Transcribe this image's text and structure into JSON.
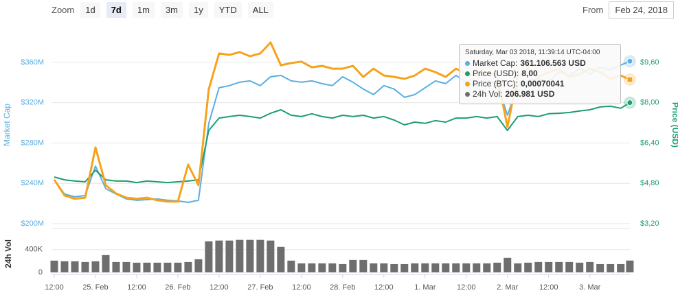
{
  "toolbar": {
    "zoom_label": "Zoom",
    "buttons": [
      "1d",
      "7d",
      "1m",
      "3m",
      "1y",
      "YTD",
      "ALL"
    ],
    "selected": "7d",
    "from_label": "From",
    "from_date": "Feb 24, 2018"
  },
  "tooltip": {
    "title": "Saturday, Mar 03 2018, 11:39:14 UTC-04:00",
    "rows": [
      {
        "label": "Market Cap:",
        "value": "361.106.563 USD"
      },
      {
        "label": "Price (USD):",
        "value": "8,00"
      },
      {
        "label": "Price (BTC):",
        "value": "0,00070041"
      },
      {
        "label": "24h Vol:",
        "value": "206.981 USD"
      }
    ]
  },
  "chart_data": [
    {
      "type": "line",
      "ylabel": "Market Cap",
      "y2label": "Price (USD)",
      "x": [
        "2018-02-24T12:00",
        "2018-02-24T15:00",
        "2018-02-24T18:00",
        "2018-02-24T21:00",
        "2018-02-25T00:00",
        "2018-02-25T03:00",
        "2018-02-25T06:00",
        "2018-02-25T09:00",
        "2018-02-25T12:00",
        "2018-02-25T15:00",
        "2018-02-25T18:00",
        "2018-02-25T21:00",
        "2018-02-26T00:00",
        "2018-02-26T03:00",
        "2018-02-26T06:00",
        "2018-02-26T09:00",
        "2018-02-26T12:00",
        "2018-02-26T15:00",
        "2018-02-26T18:00",
        "2018-02-26T21:00",
        "2018-02-27T00:00",
        "2018-02-27T03:00",
        "2018-02-27T06:00",
        "2018-02-27T09:00",
        "2018-02-27T12:00",
        "2018-02-27T15:00",
        "2018-02-27T18:00",
        "2018-02-27T21:00",
        "2018-02-28T00:00",
        "2018-02-28T03:00",
        "2018-02-28T06:00",
        "2018-02-28T09:00",
        "2018-02-28T12:00",
        "2018-02-28T15:00",
        "2018-02-28T18:00",
        "2018-02-28T21:00",
        "2018-03-01T00:00",
        "2018-03-01T03:00",
        "2018-03-01T06:00",
        "2018-03-01T09:00",
        "2018-03-01T12:00",
        "2018-03-01T15:00",
        "2018-03-01T18:00",
        "2018-03-01T21:00",
        "2018-03-02T00:00",
        "2018-03-02T03:00",
        "2018-03-02T06:00",
        "2018-03-02T09:00",
        "2018-03-02T12:00",
        "2018-03-02T15:00",
        "2018-03-02T18:00",
        "2018-03-02T21:00",
        "2018-03-03T00:00",
        "2018-03-03T03:00",
        "2018-03-03T06:00",
        "2018-03-03T09:00",
        "2018-03-03T11:39"
      ],
      "xlim": [
        "2018-02-24T11:12",
        "2018-03-03T11:40"
      ],
      "ylim": [
        200000000,
        396000000
      ],
      "yticks": [
        {
          "value": 200000000,
          "label": "$200M"
        },
        {
          "value": 240000000,
          "label": "$240M"
        },
        {
          "value": 280000000,
          "label": "$280M"
        },
        {
          "value": 320000000,
          "label": "$320M"
        },
        {
          "value": 360000000,
          "label": "$360M"
        }
      ],
      "y2lim": [
        3.2,
        11.04
      ],
      "y2ticks": [
        {
          "value": 3.2,
          "label": "$3,20"
        },
        {
          "value": 4.8,
          "label": "$4,80"
        },
        {
          "value": 6.4,
          "label": "$6,40"
        },
        {
          "value": 8,
          "label": "$8,00"
        },
        {
          "value": 9.6,
          "label": "$9,60"
        }
      ],
      "y3lim": [
        0.00019,
        0.00089
      ],
      "grid": true,
      "ylabel_color": "#5aaee0",
      "y2label_color": "#1b9e6f",
      "series": [
        {
          "name": "Market Cap",
          "color": "#5aaee0",
          "axis": "y",
          "marker": "circle",
          "values": [
            243600000,
            229300000,
            226600000,
            227900000,
            257200000,
            234700000,
            229300000,
            224500000,
            223200000,
            223800000,
            224500000,
            223200000,
            222500000,
            221100000,
            223200000,
            299400000,
            334800000,
            336900000,
            340300000,
            341600000,
            336900000,
            345700000,
            347100000,
            341600000,
            340300000,
            341600000,
            338900000,
            336900000,
            345700000,
            340300000,
            333500000,
            328000000,
            336900000,
            333500000,
            325300000,
            328000000,
            334800000,
            341600000,
            338900000,
            347100000,
            340300000,
            336900000,
            341600000,
            338900000,
            307600000,
            336900000,
            341600000,
            343700000,
            340300000,
            350500000,
            347100000,
            353900000,
            348400000,
            355200000,
            352500000,
            357300000,
            361106563
          ]
        },
        {
          "name": "Price (USD)",
          "color": "#1b9e6f",
          "axis": "y2",
          "marker": "circle",
          "values": [
            5.05,
            4.94,
            4.89,
            4.86,
            5.32,
            4.94,
            4.89,
            4.89,
            4.83,
            4.89,
            4.86,
            4.83,
            4.86,
            4.89,
            4.94,
            6.9,
            7.39,
            7.45,
            7.5,
            7.45,
            7.39,
            7.58,
            7.72,
            7.5,
            7.45,
            7.56,
            7.45,
            7.39,
            7.5,
            7.45,
            7.5,
            7.39,
            7.45,
            7.31,
            7.12,
            7.23,
            7.18,
            7.29,
            7.23,
            7.39,
            7.39,
            7.45,
            7.39,
            7.45,
            6.9,
            7.45,
            7.5,
            7.45,
            7.56,
            7.58,
            7.61,
            7.67,
            7.72,
            7.83,
            7.86,
            7.78,
            8.0
          ]
        },
        {
          "name": "Price (BTC)",
          "color": "#f7a21b",
          "axis": "y3",
          "marker": "square",
          "values": [
            0.000346,
            0.00029,
            0.000278,
            0.000282,
            0.00046,
            0.000326,
            0.000297,
            0.000282,
            0.000278,
            0.000282,
            0.000273,
            0.000268,
            0.000268,
            0.000399,
            0.000326,
            0.000666,
            0.000793,
            0.000788,
            0.000798,
            0.000783,
            0.000793,
            0.000832,
            0.000751,
            0.000759,
            0.000764,
            0.000744,
            0.000749,
            0.000739,
            0.000739,
            0.000749,
            0.00071,
            0.000739,
            0.000715,
            0.00071,
            0.000703,
            0.000715,
            0.000739,
            0.000727,
            0.00071,
            0.000739,
            0.00072,
            0.000715,
            0.000727,
            0.000715,
            0.000533,
            0.000715,
            0.000739,
            0.00071,
            0.000727,
            0.000739,
            0.00071,
            0.00072,
            0.000739,
            0.000727,
            0.000703,
            0.000715,
            0.00070041
          ]
        }
      ]
    },
    {
      "type": "bar",
      "ylabel": "24h Vol",
      "x": [
        "2018-02-24T12:00",
        "2018-02-24T15:00",
        "2018-02-24T18:00",
        "2018-02-24T21:00",
        "2018-02-25T00:00",
        "2018-02-25T03:00",
        "2018-02-25T06:00",
        "2018-02-25T09:00",
        "2018-02-25T12:00",
        "2018-02-25T15:00",
        "2018-02-25T18:00",
        "2018-02-25T21:00",
        "2018-02-26T00:00",
        "2018-02-26T03:00",
        "2018-02-26T06:00",
        "2018-02-26T09:00",
        "2018-02-26T12:00",
        "2018-02-26T15:00",
        "2018-02-26T18:00",
        "2018-02-26T21:00",
        "2018-02-27T00:00",
        "2018-02-27T03:00",
        "2018-02-27T06:00",
        "2018-02-27T09:00",
        "2018-02-27T12:00",
        "2018-02-27T15:00",
        "2018-02-27T18:00",
        "2018-02-27T21:00",
        "2018-02-28T00:00",
        "2018-02-28T03:00",
        "2018-02-28T06:00",
        "2018-02-28T09:00",
        "2018-02-28T12:00",
        "2018-02-28T15:00",
        "2018-02-28T18:00",
        "2018-02-28T21:00",
        "2018-03-01T00:00",
        "2018-03-01T03:00",
        "2018-03-01T06:00",
        "2018-03-01T09:00",
        "2018-03-01T12:00",
        "2018-03-01T15:00",
        "2018-03-01T18:00",
        "2018-03-01T21:00",
        "2018-03-02T00:00",
        "2018-03-02T03:00",
        "2018-03-02T06:00",
        "2018-03-02T09:00",
        "2018-03-02T12:00",
        "2018-03-02T15:00",
        "2018-03-02T18:00",
        "2018-03-02T21:00",
        "2018-03-03T00:00",
        "2018-03-03T03:00",
        "2018-03-03T06:00",
        "2018-03-03T09:00",
        "2018-03-03T11:39"
      ],
      "xlim": [
        "2018-02-24T11:12",
        "2018-03-03T11:40"
      ],
      "xticks": [
        {
          "value": "2018-02-24T12:00",
          "label": "12:00"
        },
        {
          "value": "2018-02-25T00:00",
          "label": "25. Feb"
        },
        {
          "value": "2018-02-25T12:00",
          "label": "12:00"
        },
        {
          "value": "2018-02-26T00:00",
          "label": "26. Feb"
        },
        {
          "value": "2018-02-26T12:00",
          "label": "12:00"
        },
        {
          "value": "2018-02-27T00:00",
          "label": "27. Feb"
        },
        {
          "value": "2018-02-27T12:00",
          "label": "12:00"
        },
        {
          "value": "2018-02-28T00:00",
          "label": "28. Feb"
        },
        {
          "value": "2018-02-28T12:00",
          "label": "12:00"
        },
        {
          "value": "2018-03-01T00:00",
          "label": "1. Mar"
        },
        {
          "value": "2018-03-01T12:00",
          "label": "12:00"
        },
        {
          "value": "2018-03-02T00:00",
          "label": "2. Mar"
        },
        {
          "value": "2018-03-02T12:00",
          "label": "12:00"
        },
        {
          "value": "2018-03-03T00:00",
          "label": "3. Mar"
        }
      ],
      "ylim": [
        0,
        650000
      ],
      "yticks": [
        0,
        {
          "value": 400000,
          "label": "400K"
        }
      ],
      "series": [
        {
          "name": "24h Vol",
          "color": "#6e6e6e",
          "values": [
            206000,
            194000,
            194000,
            182000,
            194000,
            303000,
            182000,
            182000,
            170000,
            170000,
            170000,
            170000,
            170000,
            182000,
            230000,
            545000,
            558000,
            558000,
            570000,
            570000,
            570000,
            558000,
            448000,
            206000,
            158000,
            158000,
            158000,
            158000,
            145000,
            218000,
            218000,
            158000,
            158000,
            145000,
            145000,
            158000,
            158000,
            158000,
            158000,
            158000,
            158000,
            158000,
            158000,
            170000,
            255000,
            158000,
            170000,
            182000,
            182000,
            182000,
            182000,
            170000,
            182000,
            145000,
            145000,
            145000,
            206981
          ]
        }
      ]
    }
  ]
}
